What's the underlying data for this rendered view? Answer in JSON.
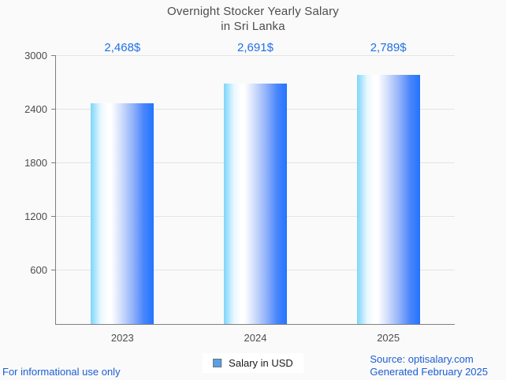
{
  "title": {
    "line1": "Overnight Stocker Yearly Salary",
    "line2": "in Sri Lanka"
  },
  "chart_data": {
    "type": "bar",
    "title": "Overnight Stocker Yearly Salary in Sri Lanka",
    "categories": [
      "2023",
      "2024",
      "2025"
    ],
    "series": [
      {
        "name": "Salary in USD",
        "values": [
          2468,
          2691,
          2789
        ],
        "value_labels": [
          "2,468$",
          "2,691$",
          "2,789$"
        ]
      }
    ],
    "xlabel": "",
    "ylabel": "",
    "ylim": [
      0,
      3000
    ],
    "yticks": [
      600,
      1200,
      1800,
      2400,
      3000
    ],
    "grid": "horizontal",
    "legend_position": "bottom-center",
    "bar_color_gradient": [
      "#7cd5fa",
      "#ffffff",
      "#2273ff"
    ]
  },
  "legend": {
    "label": "Salary in USD",
    "swatch_color": "#57a0ea"
  },
  "footer": {
    "left_note": "For informational use only",
    "source": "Source: optisalary.com",
    "generated": "Generated February 2025"
  },
  "colors": {
    "background": "#fafafa",
    "gridline": "#e4e4e4",
    "axis": "#7f7f7f",
    "title_text": "#4d4d4d",
    "tick_label_text": "#4d4d4d",
    "value_label_text": "#2170e8",
    "footer_text": "#1c5ed3"
  }
}
